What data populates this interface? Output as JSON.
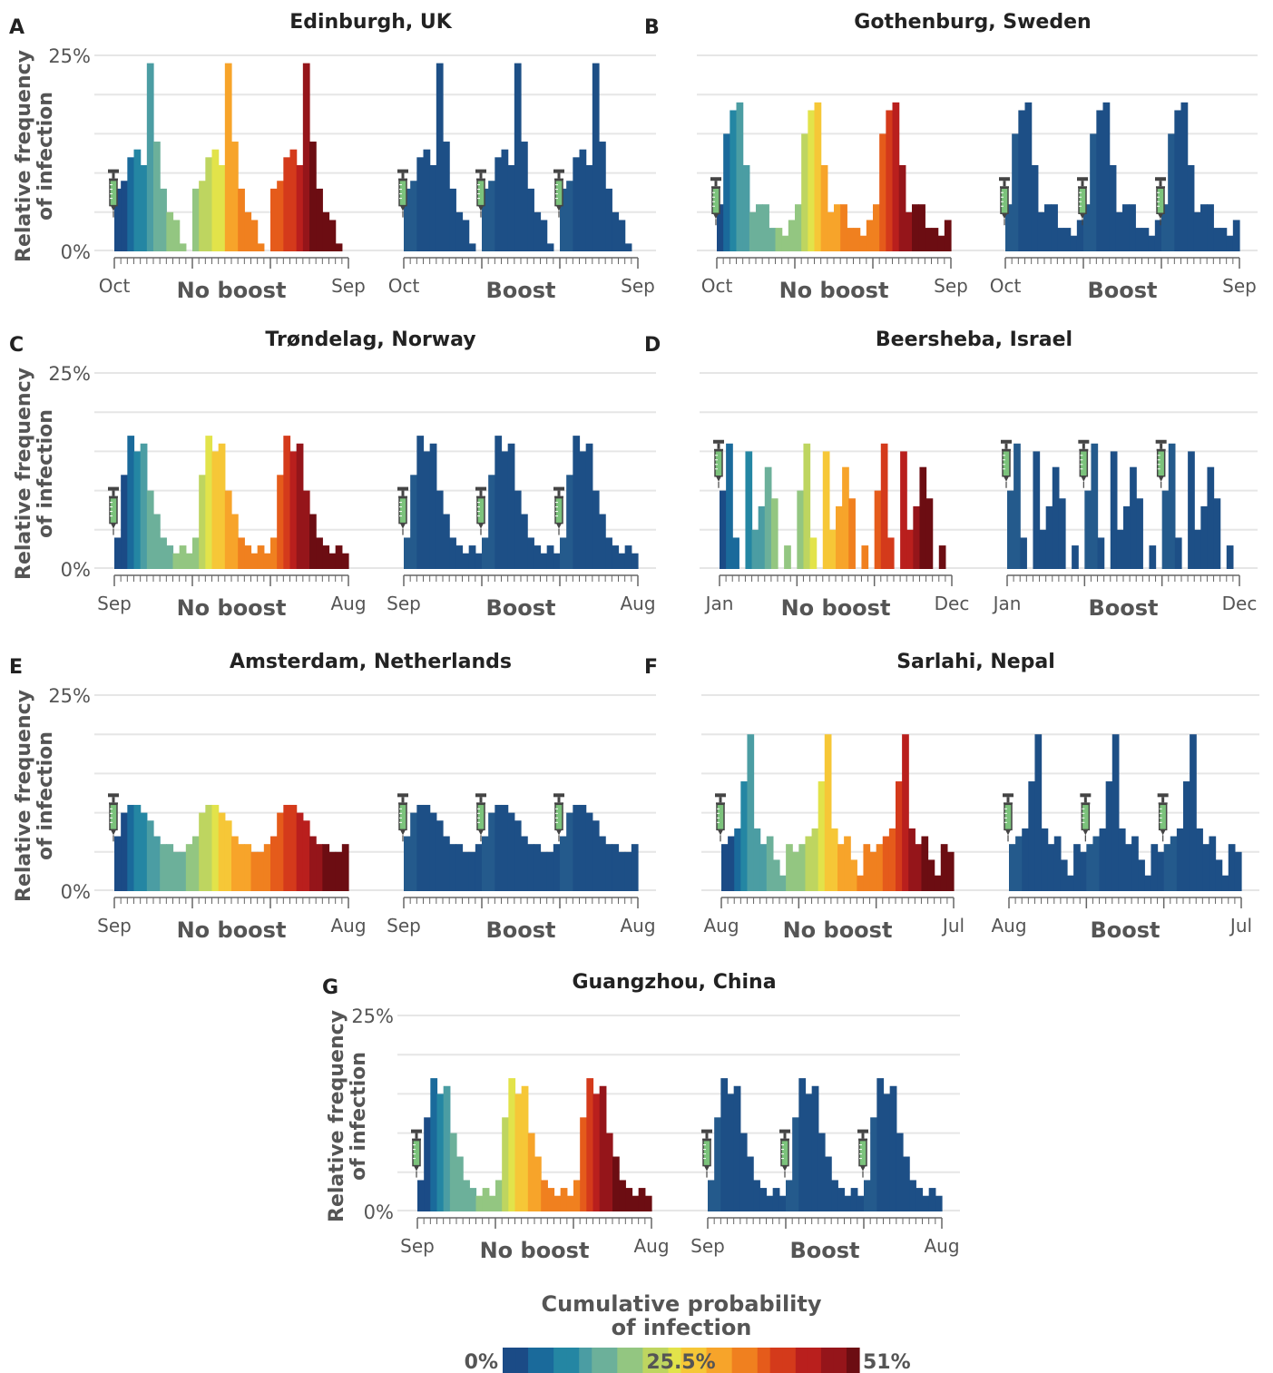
{
  "colors": {
    "boost_bar": "#1d4f86",
    "boost_bar_alt": "#245a8c",
    "grid": "#e6e6e6",
    "axis_line": "#666666",
    "text_dark": "#222222",
    "text_label": "#555555",
    "palette": [
      "#1b4b86",
      "#1a6a9b",
      "#2486a3",
      "#4b9da3",
      "#6cb09a",
      "#93c681",
      "#bed560",
      "#e2e34a",
      "#f6c737",
      "#f7a42a",
      "#f0801f",
      "#e55b1b",
      "#d43a1b",
      "#b91f1d",
      "#95151a",
      "#6c0d12"
    ]
  },
  "chart_data": [
    {
      "type": "bar",
      "panel_letter": "A",
      "title": "Edinburgh, UK",
      "ylabel": "Relative frequency of infection",
      "y_tick_labels": [
        "0%",
        "25%"
      ],
      "ylim": [
        0,
        25
      ],
      "start_month": "Oct",
      "end_month": "Sep",
      "vaccine_marker_level": 10,
      "no_boost_label": "No boost",
      "boost_label": "Boost",
      "period_values": [
        8,
        9,
        12,
        13,
        11,
        24,
        14,
        8,
        5,
        4,
        1,
        0
      ],
      "cumulative_max": 51
    },
    {
      "type": "bar",
      "panel_letter": "B",
      "title": "Gothenburg, Sweden",
      "ylabel": "",
      "y_tick_labels": [],
      "ylim": [
        0,
        25
      ],
      "start_month": "Oct",
      "end_month": "Sep",
      "vaccine_marker_level": 9,
      "no_boost_label": "No boost",
      "boost_label": "Boost",
      "period_values": [
        6,
        15,
        18,
        19,
        11,
        5,
        6,
        6,
        3,
        3,
        2,
        4
      ],
      "cumulative_max": 51
    },
    {
      "type": "bar",
      "panel_letter": "C",
      "title": "Trøndelag, Norway",
      "ylabel": "Relative frequency of infection",
      "y_tick_labels": [
        "0%",
        "25%"
      ],
      "ylim": [
        0,
        25
      ],
      "start_month": "Sep",
      "end_month": "Aug",
      "vaccine_marker_level": 10,
      "no_boost_label": "No boost",
      "boost_label": "Boost",
      "period_values": [
        4,
        12,
        17,
        15,
        16,
        10,
        7,
        4,
        3,
        2,
        3,
        2
      ],
      "cumulative_max": 51
    },
    {
      "type": "bar",
      "panel_letter": "D",
      "title": "Beersheba, Israel",
      "ylabel": "",
      "y_tick_labels": [],
      "ylim": [
        0,
        25
      ],
      "start_month": "Jan",
      "end_month": "Dec",
      "vaccine_marker_level": 16,
      "no_boost_label": "No boost",
      "boost_label": "Boost",
      "period_values": [
        10,
        16,
        4,
        0,
        15,
        5,
        8,
        13,
        9,
        0,
        3,
        0
      ],
      "cumulative_max": 51
    },
    {
      "type": "bar",
      "panel_letter": "E",
      "title": "Amsterdam, Netherlands",
      "ylabel": "Relative frequency of infection",
      "y_tick_labels": [
        "0%",
        "25%"
      ],
      "ylim": [
        0,
        25
      ],
      "start_month": "Sep",
      "end_month": "Aug",
      "vaccine_marker_level": 12,
      "no_boost_label": "No boost",
      "boost_label": "Boost",
      "period_values": [
        7,
        10,
        11,
        11,
        10,
        9,
        7,
        6,
        6,
        5,
        5,
        6
      ],
      "cumulative_max": 51
    },
    {
      "type": "bar",
      "panel_letter": "F",
      "title": "Sarlahi, Nepal",
      "ylabel": "",
      "y_tick_labels": [],
      "ylim": [
        0,
        25
      ],
      "start_month": "Aug",
      "end_month": "Jul",
      "vaccine_marker_level": 12,
      "no_boost_label": "No boost",
      "boost_label": "Boost",
      "period_values": [
        6,
        7,
        8,
        14,
        20,
        8,
        6,
        7,
        4,
        2,
        6,
        5
      ],
      "cumulative_max": 51
    },
    {
      "type": "bar",
      "panel_letter": "G",
      "title": "Guangzhou, China",
      "ylabel": "Relative frequency of infection",
      "y_tick_labels": [
        "0%",
        "25%"
      ],
      "ylim": [
        0,
        25
      ],
      "start_month": "Sep",
      "end_month": "Aug",
      "vaccine_marker_level": 10,
      "no_boost_label": "No boost",
      "boost_label": "Boost",
      "period_values": [
        4,
        12,
        17,
        15,
        16,
        10,
        7,
        4,
        3,
        2,
        3,
        2
      ],
      "cumulative_max": 51
    }
  ],
  "legend": {
    "title_line1": "Cumulative probability",
    "title_line2": "of infection",
    "min_label": "0%",
    "mid_label": "25.5%",
    "max_label": "51%"
  }
}
